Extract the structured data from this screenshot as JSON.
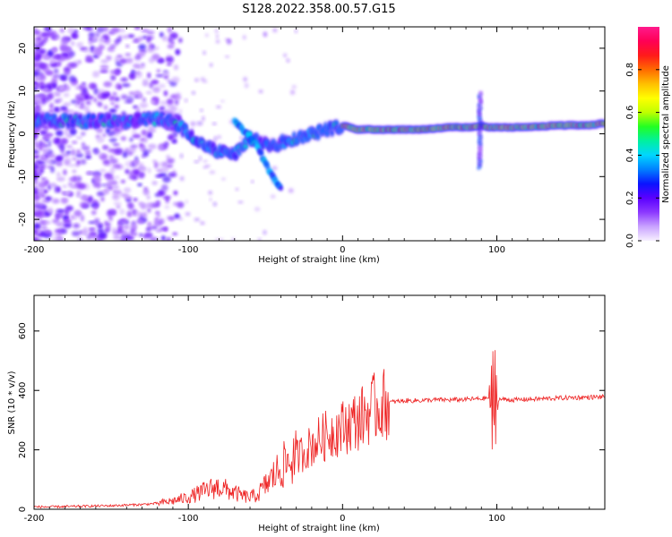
{
  "figure": {
    "title": "S128.2022.358.00.57.G15"
  },
  "chart_data": [
    {
      "type": "heatmap",
      "xlabel": "Height of straight line (km)",
      "ylabel": "Frequency (Hz)",
      "xlim": [
        -200,
        170
      ],
      "ylim": [
        -25,
        25
      ],
      "x_ticks": [
        -200,
        -100,
        0,
        100
      ],
      "y_ticks": [
        -20,
        -10,
        0,
        10,
        20
      ],
      "colorbar": {
        "label": "Normalized spectral amplitude",
        "range": [
          0,
          1
        ],
        "ticks": [
          0.0,
          0.2,
          0.4,
          0.6,
          0.8
        ],
        "colors": [
          "#f7f0ff",
          "#c9a2ff",
          "#8c39ff",
          "#5a00ff",
          "#0a14ff",
          "#0080ff",
          "#00d6ff",
          "#00f0a0",
          "#22ff22",
          "#bfff00",
          "#ffff00",
          "#ffbf00",
          "#ff6a00",
          "#ff1a1a",
          "#ff0055",
          "#ff1a8c"
        ]
      },
      "ridge": {
        "x": [
          -200,
          -180,
          -160,
          -140,
          -120,
          -110,
          -100,
          -90,
          -80,
          -70,
          -60,
          -50,
          -45,
          -40,
          -30,
          -20,
          -10,
          0,
          10,
          30,
          50,
          70,
          85,
          90,
          95,
          100,
          120,
          140,
          160,
          170
        ],
        "y": [
          3,
          3,
          3,
          3,
          3.5,
          3,
          0,
          -3,
          -4,
          -5,
          -1,
          -2,
          -3,
          -2,
          -1,
          0,
          1,
          2,
          1,
          1,
          1,
          1.5,
          1.5,
          2,
          1.5,
          1.5,
          1.5,
          2,
          2,
          2.5
        ]
      },
      "branch": {
        "x": [
          -70,
          -62,
          -55,
          -50,
          -45,
          -40
        ],
        "y": [
          3,
          0,
          -3,
          -7,
          -10,
          -13
        ]
      }
    },
    {
      "type": "line",
      "xlabel": "Height of straight line (km)",
      "ylabel": "SNR (10 * v/v)",
      "xlim": [
        -200,
        170
      ],
      "ylim": [
        0,
        720
      ],
      "x_ticks": [
        -200,
        -100,
        0,
        100
      ],
      "y_ticks": [
        0,
        200,
        400,
        600
      ],
      "color": "#ee2222",
      "series": [
        {
          "x": [
            -200,
            -190,
            -180,
            -170,
            -160,
            -150,
            -140,
            -130,
            -120,
            -110,
            -100,
            -95,
            -90,
            -85,
            -80,
            -75,
            -70,
            -65,
            -60,
            -55,
            -50,
            -45,
            -40,
            -35,
            -30,
            -25,
            -20,
            -15,
            -10,
            -5,
            0,
            5,
            10,
            15,
            20,
            25,
            30,
            40,
            50,
            60,
            70,
            80,
            90,
            95,
            100,
            105,
            110,
            120,
            130,
            140,
            150,
            160,
            170
          ],
          "values": [
            8,
            8,
            9,
            10,
            11,
            12,
            14,
            16,
            20,
            28,
            40,
            50,
            60,
            70,
            75,
            65,
            55,
            45,
            40,
            50,
            80,
            110,
            140,
            160,
            175,
            195,
            215,
            235,
            250,
            265,
            275,
            290,
            300,
            320,
            340,
            350,
            360,
            365,
            366,
            368,
            368,
            370,
            372,
            375,
            370,
            370,
            368,
            370,
            372,
            374,
            376,
            377,
            378
          ]
        }
      ]
    }
  ]
}
